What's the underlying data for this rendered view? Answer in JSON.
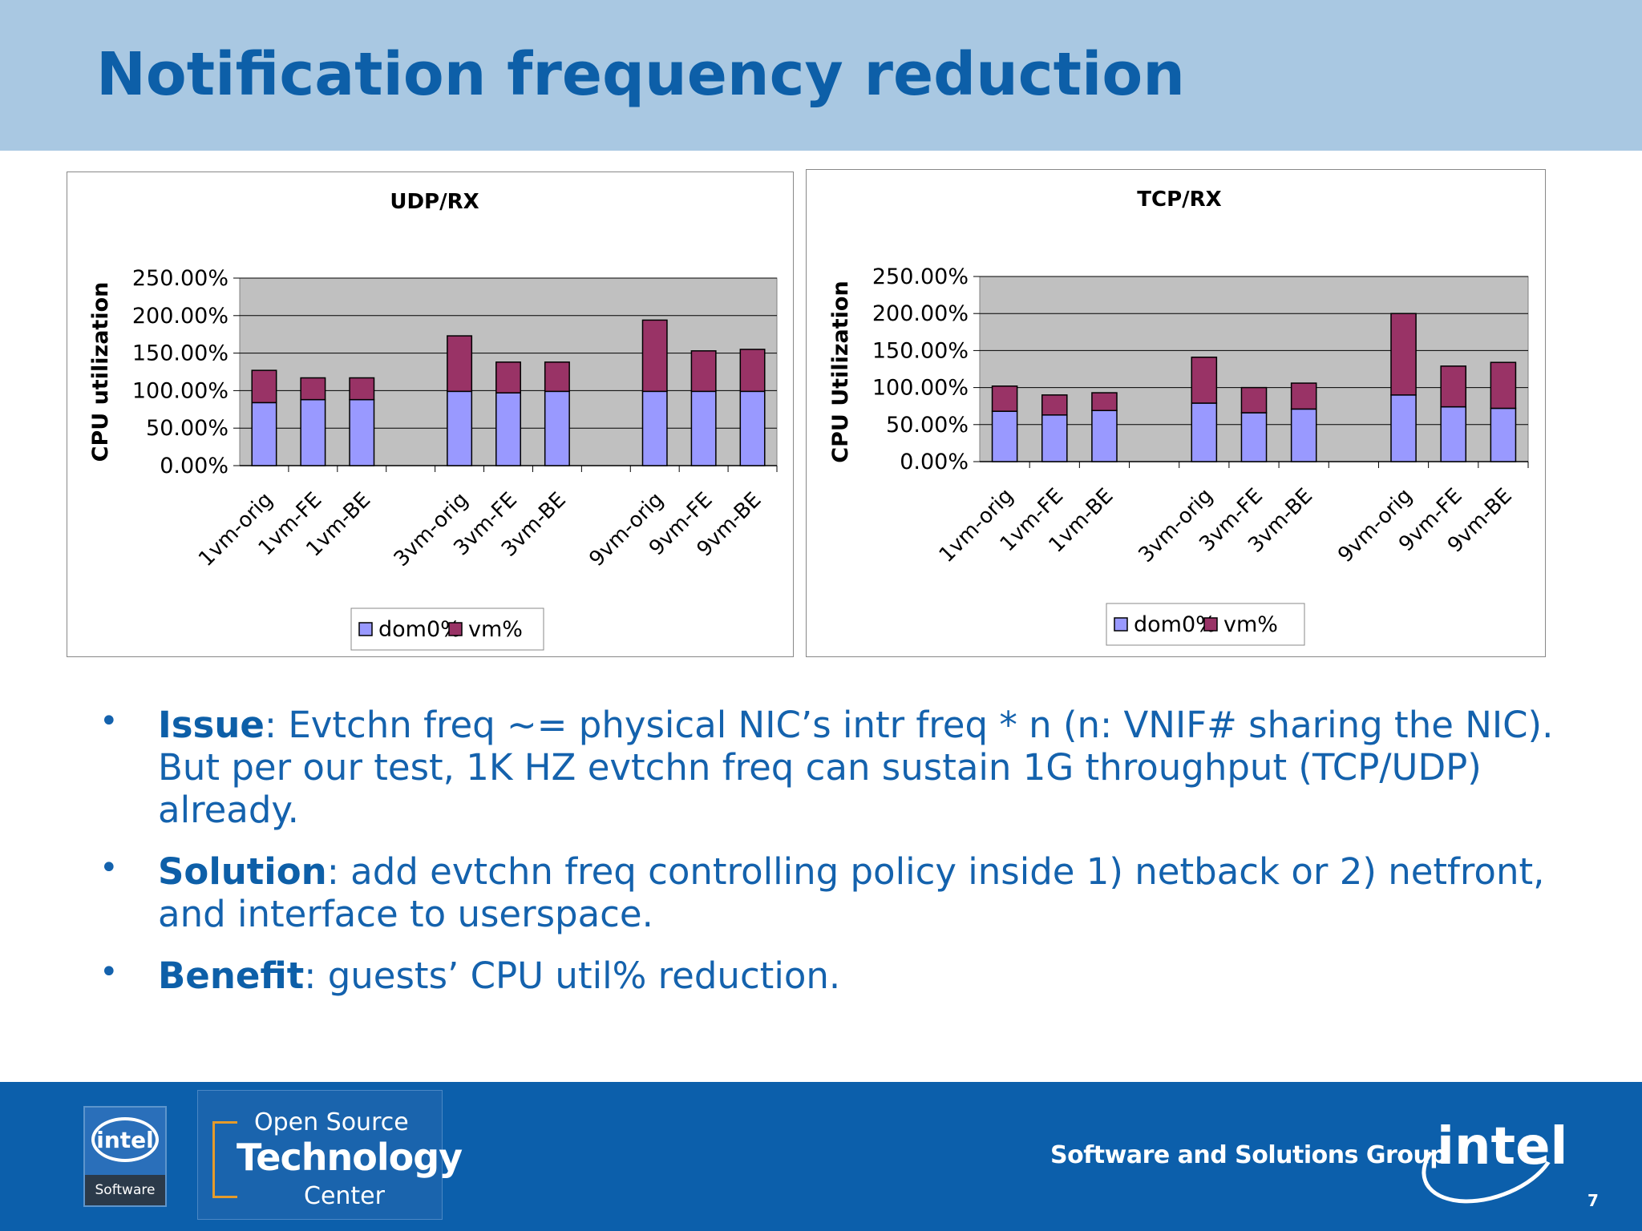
{
  "slide": {
    "title": "Notification frequency reduction",
    "page_number": "7"
  },
  "chart_data": [
    {
      "type": "bar",
      "stacked": true,
      "title": "UDP/RX",
      "ylabel": "CPU utilization",
      "ylim": [
        0,
        250
      ],
      "y_ticks": [
        "0.00%",
        "50.00%",
        "100.00%",
        "150.00%",
        "200.00%",
        "250.00%"
      ],
      "grid": true,
      "legend_position": "bottom",
      "categories": [
        "1vm-orig",
        "1vm-FE",
        "1vm-BE",
        "",
        "3vm-orig",
        "3vm-FE",
        "3vm-BE",
        "",
        "9vm-orig",
        "9vm-FE",
        "9vm-BE"
      ],
      "series": [
        {
          "name": "dom0%",
          "color": "#9999ff",
          "values": [
            84,
            88,
            88,
            null,
            99,
            97,
            99,
            null,
            99,
            99,
            99
          ]
        },
        {
          "name": "vm%",
          "color": "#993366",
          "values": [
            43,
            29,
            29,
            null,
            74,
            41,
            39,
            null,
            95,
            54,
            56
          ]
        }
      ]
    },
    {
      "type": "bar",
      "stacked": true,
      "title": "TCP/RX",
      "ylabel": "CPU Utilization",
      "ylim": [
        0,
        250
      ],
      "y_ticks": [
        "0.00%",
        "50.00%",
        "100.00%",
        "150.00%",
        "200.00%",
        "250.00%"
      ],
      "grid": true,
      "legend_position": "bottom",
      "categories": [
        "1vm-orig",
        "1vm-FE",
        "1vm-BE",
        "",
        "3vm-orig",
        "3vm-FE",
        "3vm-BE",
        "",
        "9vm-orig",
        "9vm-FE",
        "9vm-BE"
      ],
      "series": [
        {
          "name": "dom0%",
          "color": "#9999ff",
          "values": [
            68,
            63,
            69,
            null,
            79,
            66,
            71,
            null,
            90,
            74,
            72
          ]
        },
        {
          "name": "vm%",
          "color": "#993366",
          "values": [
            34,
            27,
            24,
            null,
            62,
            34,
            35,
            null,
            110,
            55,
            62
          ]
        }
      ]
    }
  ],
  "bullets": [
    {
      "key": "Issue",
      "text": ": Evtchn freq ~= physical NIC’s intr freq * n (n: VNIF# sharing the NIC).",
      "text2": "But per our test, 1K HZ evtchn freq can sustain 1G throughput (TCP/UDP) already."
    },
    {
      "key": "Solution",
      "text": ": add evtchn freq controlling policy inside 1) netback or 2) netfront, and interface to userspace."
    },
    {
      "key": "Benefit",
      "text": ": guests’ CPU util% reduction."
    }
  ],
  "footer": {
    "logo1_brand": "intel",
    "logo1_sub": "Software",
    "logo2_line1": "Open Source",
    "logo2_line2": "Technology",
    "logo2_line3": "Center",
    "group_name": "Software and Solutions Group",
    "logo3_brand": "intel"
  }
}
